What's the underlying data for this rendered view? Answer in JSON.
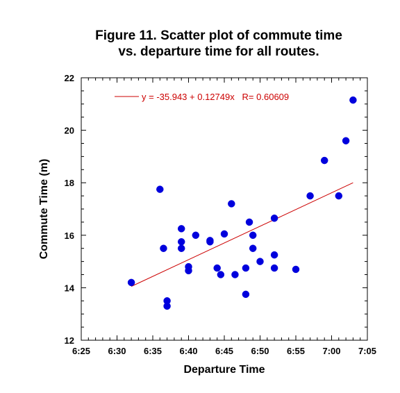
{
  "chart_data": {
    "type": "scatter",
    "title_lines": [
      "Figure 11. Scatter plot of commute time",
      "vs. departure time for all routes."
    ],
    "xlabel": "Departure Time",
    "ylabel": "Commute Time (m)",
    "xlim": [
      "6:25",
      "7:05"
    ],
    "ylim": [
      12,
      22
    ],
    "x_ticks": [
      "6:25",
      "6:30",
      "6:35",
      "6:40",
      "6:45",
      "6:50",
      "6:55",
      "7:00",
      "7:05"
    ],
    "y_ticks": [
      12,
      14,
      16,
      18,
      20,
      22
    ],
    "grid": false,
    "marker_color": "#0000dd",
    "fit_color": "#cc0000",
    "fit_line": {
      "label": "y = -35.943 + 0.12749x   R= 0.60609",
      "x_start": "6:32",
      "x_end": "7:03",
      "y_start": 14.05,
      "y_end": 18.0
    },
    "points": [
      {
        "x": "6:32",
        "y": 14.2
      },
      {
        "x": "6:36",
        "y": 17.75
      },
      {
        "x": "6:36.5",
        "y": 15.5
      },
      {
        "x": "6:37",
        "y": 13.5
      },
      {
        "x": "6:37",
        "y": 13.3
      },
      {
        "x": "6:39",
        "y": 16.25
      },
      {
        "x": "6:39",
        "y": 15.75
      },
      {
        "x": "6:39",
        "y": 15.5
      },
      {
        "x": "6:40",
        "y": 14.8
      },
      {
        "x": "6:40",
        "y": 14.65
      },
      {
        "x": "6:41",
        "y": 16.0
      },
      {
        "x": "6:43",
        "y": 15.8
      },
      {
        "x": "6:43",
        "y": 15.75
      },
      {
        "x": "6:44",
        "y": 14.75
      },
      {
        "x": "6:44.5",
        "y": 14.5
      },
      {
        "x": "6:45",
        "y": 16.05
      },
      {
        "x": "6:46",
        "y": 17.2
      },
      {
        "x": "6:46.5",
        "y": 14.5
      },
      {
        "x": "6:48",
        "y": 14.75
      },
      {
        "x": "6:48",
        "y": 13.75
      },
      {
        "x": "6:48.5",
        "y": 16.5
      },
      {
        "x": "6:49",
        "y": 16.0
      },
      {
        "x": "6:49",
        "y": 15.5
      },
      {
        "x": "6:50",
        "y": 15.0
      },
      {
        "x": "6:52",
        "y": 16.65
      },
      {
        "x": "6:52",
        "y": 15.25
      },
      {
        "x": "6:52",
        "y": 14.75
      },
      {
        "x": "6:55",
        "y": 14.7
      },
      {
        "x": "6:57",
        "y": 17.5
      },
      {
        "x": "6:59",
        "y": 18.85
      },
      {
        "x": "7:01",
        "y": 17.5
      },
      {
        "x": "7:02",
        "y": 19.6
      },
      {
        "x": "7:03",
        "y": 21.15
      }
    ]
  }
}
